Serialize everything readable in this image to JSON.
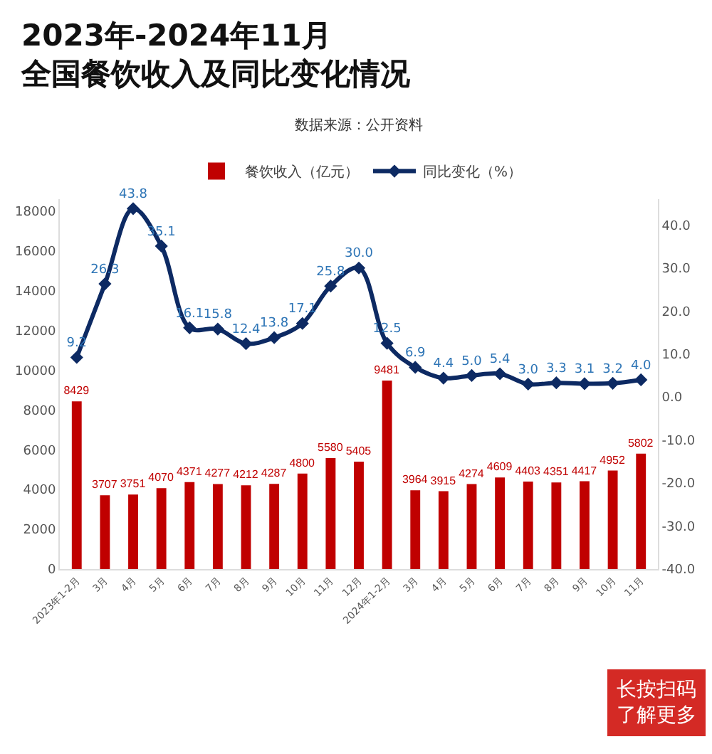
{
  "chart_data": {
    "type": "bar",
    "title": "2023年-2024年11月全国餐饮收入及同比变化情况",
    "subtitle": "数据来源：公开资料",
    "categories": [
      "2023年1-2月",
      "3月",
      "4月",
      "5月",
      "6月",
      "7月",
      "8月",
      "9月",
      "10月",
      "11月",
      "12月",
      "2024年1-2月",
      "3月",
      "4月",
      "5月",
      "6月",
      "7月",
      "8月",
      "9月",
      "10月",
      "11月"
    ],
    "series": [
      {
        "name": "餐饮收入（亿元）",
        "color": "#c00000",
        "values": [
          8429,
          3707,
          3751,
          4070,
          4371,
          4277,
          4212,
          4287,
          4800,
          5580,
          5405,
          9481,
          3964,
          3915,
          4274,
          4609,
          4403,
          4351,
          4417,
          4952,
          5802
        ]
      },
      {
        "name": "同比变化（%）",
        "type": "line",
        "axis": "y2",
        "color": "#0d2a63",
        "marker": "diamond",
        "values": [
          9.2,
          26.3,
          43.8,
          35.1,
          16.1,
          15.8,
          12.4,
          13.8,
          17.1,
          25.8,
          30.0,
          12.5,
          6.9,
          4.4,
          5.0,
          5.4,
          3.0,
          3.3,
          3.1,
          3.2,
          4.0
        ],
        "value_labels": [
          "9.2",
          "26.3",
          "43.8",
          "35.1",
          "16.1",
          "15.8",
          "12.4",
          "13.8",
          "17.1",
          "25.8",
          "30.0",
          "12.5",
          "6.9",
          "4.4",
          "5.0",
          "5.4",
          "3.0",
          "3.3",
          "3.1",
          "3.2",
          "4.0"
        ]
      }
    ],
    "ylim": [
      0,
      18600
    ],
    "yticks": [
      0,
      2000,
      4000,
      6000,
      8000,
      10000,
      12000,
      14000,
      16000,
      18000
    ],
    "y2lim": [
      -40,
      46
    ],
    "y2ticks": [
      {
        "value": -40,
        "label": "-40.0"
      },
      {
        "value": -30,
        "label": "-30.0"
      },
      {
        "value": -20,
        "label": "-20.0"
      },
      {
        "value": -10,
        "label": "-10.0"
      },
      {
        "value": 0,
        "label": "0.0"
      },
      {
        "value": 10,
        "label": "10.0"
      },
      {
        "value": 20,
        "label": "20.0"
      },
      {
        "value": 30,
        "label": "30.0"
      },
      {
        "value": 40,
        "label": "40.0"
      }
    ],
    "data_labels": true,
    "grid": false,
    "legend": "top",
    "annotations": [
      "长按扫码了解更多"
    ]
  }
}
